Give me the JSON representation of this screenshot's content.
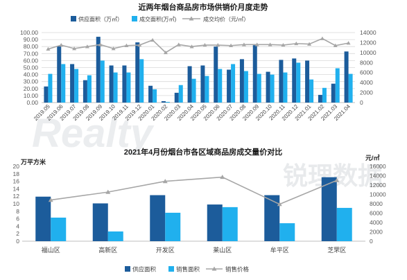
{
  "watermark": {
    "latin": "Realty",
    "chinese": "锐理数据"
  },
  "chart_data": [
    {
      "type": "bar",
      "title": "近两年烟台商品房市场供销价月度走势",
      "categories": [
        "2019.05",
        "2019.06",
        "2019.07",
        "2019.08",
        "2019.09",
        "2019.10",
        "2019.11",
        "2019.12",
        "2020.01",
        "2020.02",
        "2020.03",
        "2020.04",
        "2020.05",
        "2020.06",
        "2020.07",
        "2020.08",
        "2020.09",
        "2020.10",
        "2020.11",
        "2020.12",
        "2021.01",
        "2021.02",
        "2021.03",
        "2021.04"
      ],
      "series": [
        {
          "name": "供应面积（万㎡）",
          "type": "bar",
          "axis": "left",
          "color": "#1c5c9b",
          "values": [
            23,
            81,
            55,
            32,
            94,
            53,
            53,
            86,
            24,
            2,
            14,
            52,
            53,
            80,
            47,
            62,
            82,
            44,
            61,
            63,
            60,
            11,
            27,
            73
          ]
        },
        {
          "name": "成交面积(万㎡)",
          "type": "bar",
          "axis": "left",
          "color": "#20b0ee",
          "values": [
            41,
            55,
            48,
            39,
            60,
            43,
            43,
            62,
            19,
            1,
            25,
            34,
            38,
            48,
            55,
            45,
            41,
            40,
            43,
            57,
            33,
            21,
            49,
            41
          ]
        },
        {
          "name": "成交均价（元/㎡）",
          "type": "line",
          "axis": "right",
          "color": "#a6a6a6",
          "marker": "triangle",
          "values": [
            10700,
            11500,
            10800,
            11200,
            11600,
            10800,
            11400,
            11500,
            12500,
            10000,
            11600,
            11200,
            11500,
            11500,
            11400,
            11600,
            11600,
            11600,
            11500,
            11800,
            11700,
            12800,
            11400,
            11900
          ]
        }
      ],
      "y_left": {
        "range": [
          0,
          100
        ],
        "ticks": [
          "0.00",
          "10.00",
          "20.00",
          "30.00",
          "40.00",
          "50.00",
          "60.00",
          "70.00",
          "80.00",
          "90.00",
          "100.00"
        ]
      },
      "y_right": {
        "range": [
          0,
          14000
        ],
        "ticks": [
          "0",
          "2000",
          "4000",
          "6000",
          "8000",
          "10000",
          "12000",
          "14000"
        ]
      },
      "grid": true,
      "legend": "top"
    },
    {
      "type": "bar",
      "title": "2021年4月份烟台市各区域商品房成交量价对比",
      "ylabel": "万平方米",
      "ylabel_right": "元/㎡",
      "categories": [
        "福山区",
        "高新区",
        "开发区",
        "莱山区",
        "牟平区",
        "芝罘区"
      ],
      "series": [
        {
          "name": "供应面积",
          "type": "bar",
          "axis": "left",
          "color": "#1c5c9b",
          "values": [
            11.9,
            10.1,
            12.3,
            9.8,
            12.3,
            17.1
          ]
        },
        {
          "name": "销售面积",
          "type": "bar",
          "axis": "left",
          "color": "#20b0ee",
          "values": [
            6.3,
            2.6,
            7.6,
            9.1,
            4.8,
            8.9
          ]
        },
        {
          "name": "销售价格",
          "type": "line",
          "axis": "right",
          "color": "#a6a6a6",
          "marker": "triangle",
          "values": [
            8800,
            10500,
            12800,
            13700,
            7900,
            13000
          ]
        }
      ],
      "y_left": {
        "range": [
          0,
          20
        ],
        "ticks": [
          "0",
          "2",
          "4",
          "6",
          "8",
          "10",
          "12",
          "14",
          "16",
          "18",
          "20"
        ]
      },
      "y_right": {
        "range": [
          0,
          16000
        ],
        "ticks": [
          "0",
          "2000",
          "4000",
          "6000",
          "8000",
          "10000",
          "12000",
          "14000",
          "16000"
        ]
      },
      "grid": false,
      "legend": "bottom"
    }
  ]
}
